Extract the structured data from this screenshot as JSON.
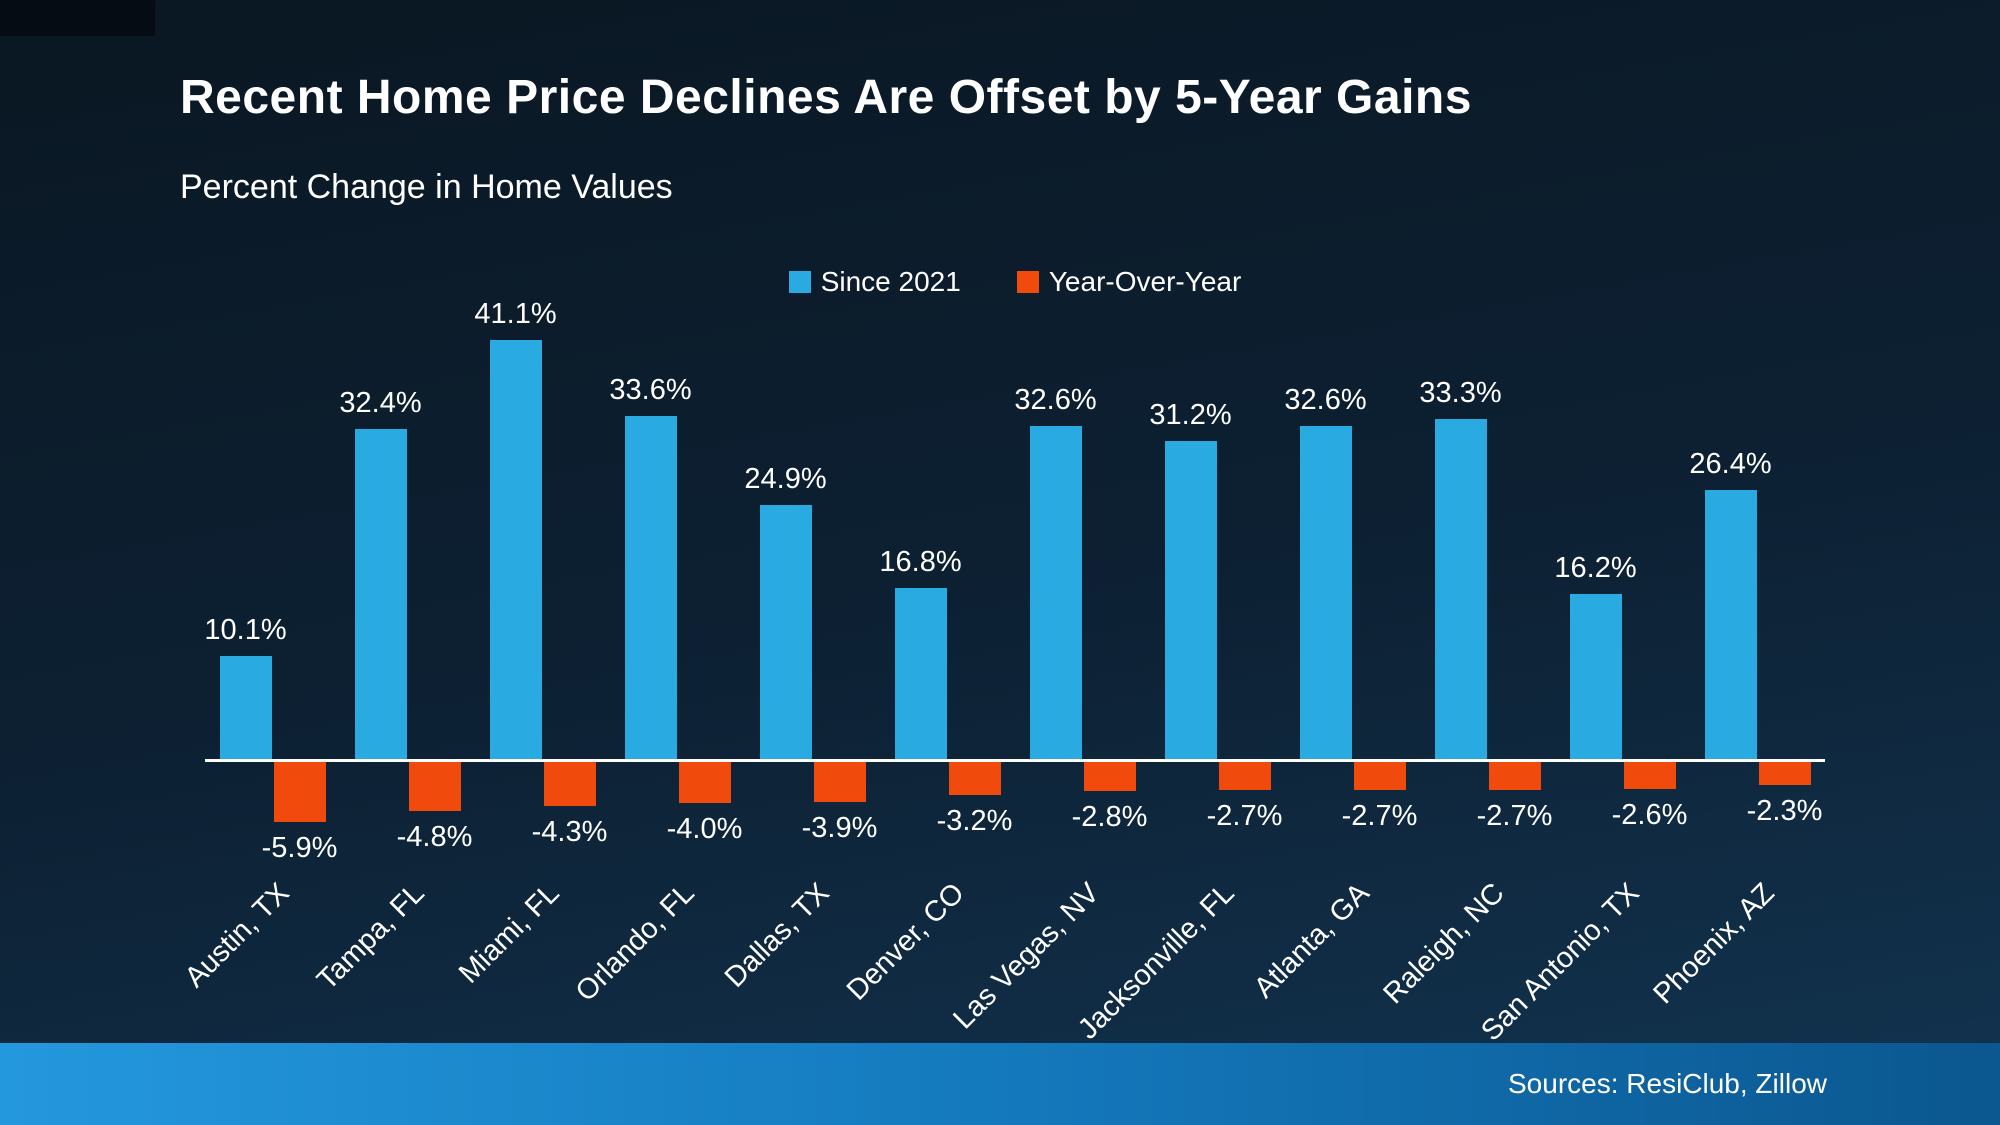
{
  "title": "Recent Home Price Declines Are Offset by 5-Year Gains",
  "subtitle": "Percent Change in Home Values",
  "footer": {
    "sources": "Sources: ResiClub, Zillow"
  },
  "colors": {
    "background_top": "#0a1722",
    "background_bottom": "#123450",
    "bar_positive": "#29abe2",
    "bar_negative": "#f04b0c",
    "axis_line": "#ffffff",
    "footer_left": "#2498dd",
    "footer_right": "#0b578f",
    "text": "#ffffff"
  },
  "chart_data": {
    "type": "bar",
    "categories": [
      "Austin, TX",
      "Tampa, FL",
      "Miami, FL",
      "Orlando, FL",
      "Dallas, TX",
      "Denver, CO",
      "Las Vegas, NV",
      "Jacksonville, FL",
      "Atlanta, GA",
      "Raleigh, NC",
      "San Antonio, TX",
      "Phoenix, AZ"
    ],
    "series": [
      {
        "name": "Since 2021",
        "color": "#29abe2",
        "values": [
          10.1,
          32.4,
          41.1,
          33.6,
          24.9,
          16.8,
          32.6,
          31.2,
          32.6,
          33.3,
          16.2,
          26.4
        ]
      },
      {
        "name": "Year-Over-Year",
        "color": "#f04b0c",
        "values": [
          -5.9,
          -4.8,
          -4.3,
          -4.0,
          -3.9,
          -3.2,
          -2.8,
          -2.7,
          -2.7,
          -2.7,
          -2.6,
          -2.3
        ]
      }
    ],
    "value_label_format": "{value}%",
    "ylim": [
      -8,
      45
    ],
    "grid": false,
    "legend_position": "top-center",
    "title": "Recent Home Price Declines Are Offset by 5-Year Gains",
    "subtitle": "Percent Change in Home Values",
    "xlabel": "",
    "ylabel": ""
  }
}
